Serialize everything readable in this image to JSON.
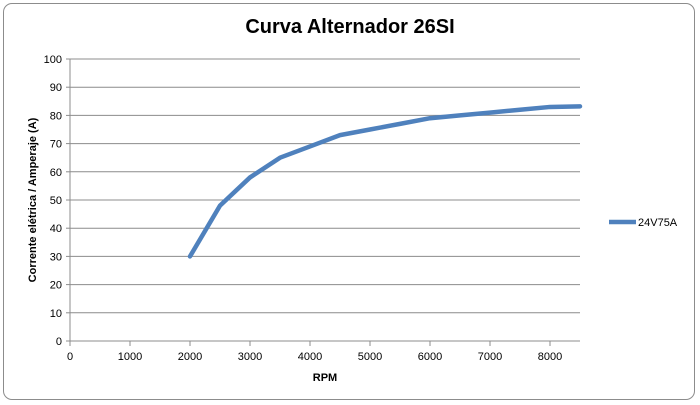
{
  "chart_data": {
    "type": "line",
    "title": "Curva Alternador 26SI",
    "xlabel": "RPM",
    "ylabel": "Corrente elétrica /  Amperaje (A)",
    "xlim": [
      0,
      8500
    ],
    "ylim": [
      0,
      100
    ],
    "xticks": [
      0,
      1000,
      2000,
      3000,
      4000,
      5000,
      6000,
      7000,
      8000
    ],
    "yticks": [
      0,
      10,
      20,
      30,
      40,
      50,
      60,
      70,
      80,
      90,
      100
    ],
    "grid": true,
    "legend_position": "right",
    "series": [
      {
        "name": "24V75A",
        "color": "#4f81bd",
        "x": [
          2000,
          2500,
          3000,
          3500,
          4000,
          4500,
          5000,
          5500,
          6000,
          6500,
          7000,
          7500,
          8000,
          8500
        ],
        "y": [
          30,
          48,
          58,
          65,
          69,
          73,
          75,
          77,
          79,
          80,
          81,
          82,
          83,
          83.2
        ]
      }
    ]
  }
}
